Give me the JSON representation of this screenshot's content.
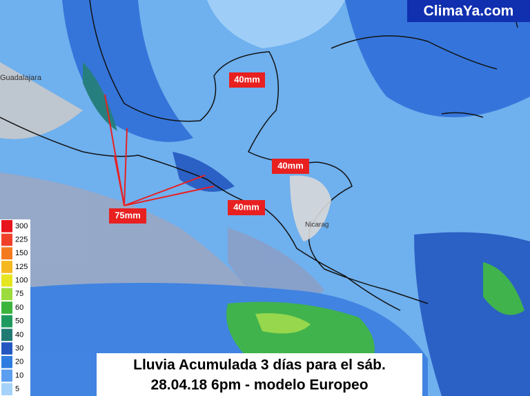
{
  "brand": "ClimaYa.com",
  "places": [
    "Guadalajara",
    "Nicarag"
  ],
  "rain_labels": [
    "40mm",
    "40mm",
    "40mm",
    "75mm"
  ],
  "legend": [
    {
      "value": 300,
      "color": "#e8141c"
    },
    {
      "value": 225,
      "color": "#f0402a"
    },
    {
      "value": 150,
      "color": "#f47a20"
    },
    {
      "value": 125,
      "color": "#f5b820"
    },
    {
      "value": 100,
      "color": "#e6e620"
    },
    {
      "value": 75,
      "color": "#9bdc3c"
    },
    {
      "value": 60,
      "color": "#3cb43c"
    },
    {
      "value": 50,
      "color": "#1f9a5e"
    },
    {
      "value": 40,
      "color": "#1f7a72"
    },
    {
      "value": 30,
      "color": "#2458c0"
    },
    {
      "value": 20,
      "color": "#2f7ce0"
    },
    {
      "value": 10,
      "color": "#5c9ef0"
    },
    {
      "value": 5,
      "color": "#a4d2f8"
    }
  ],
  "caption": [
    "Lluvia Acumulada 3 días para el sáb.",
    "28.04.18 6pm - modelo Europeo"
  ]
}
